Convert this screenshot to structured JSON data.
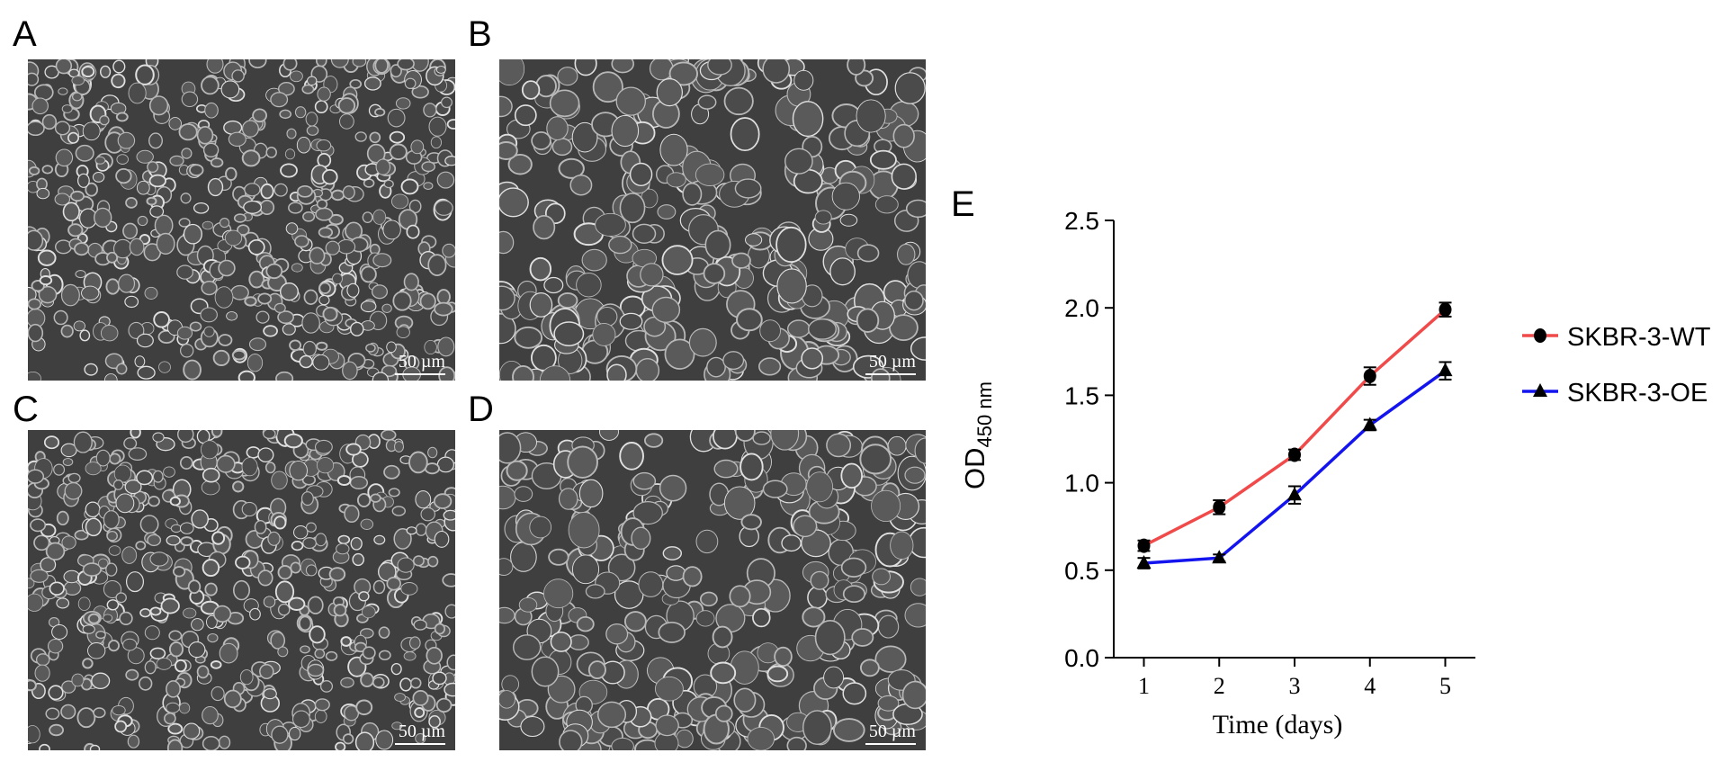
{
  "panels": [
    {
      "letter": "A",
      "scale_label": "50 µm"
    },
    {
      "letter": "B",
      "scale_label": "50 µm"
    },
    {
      "letter": "C",
      "scale_label": "50 µm"
    },
    {
      "letter": "D",
      "scale_label": "50 µm"
    }
  ],
  "chart_letter": "E",
  "chart_data": {
    "type": "line",
    "title": "",
    "xlabel": "Time (days)",
    "ylabel_main": "OD",
    "ylabel_sub": "450 nm",
    "x": [
      1,
      2,
      3,
      4,
      5
    ],
    "xticks": [
      "1",
      "2",
      "3",
      "4",
      "5"
    ],
    "yticks": [
      "0.0",
      "0.5",
      "1.0",
      "1.5",
      "2.0",
      "2.5"
    ],
    "ylim": [
      0,
      2.5
    ],
    "legend_position": "right",
    "series": [
      {
        "name": "SKBR-3-WT",
        "marker": "circle",
        "color": "#f04a4a",
        "values": [
          0.64,
          0.86,
          1.16,
          1.61,
          1.99
        ],
        "errors": [
          0.03,
          0.04,
          0.03,
          0.05,
          0.04
        ]
      },
      {
        "name": "SKBR-3-OE",
        "marker": "triangle",
        "color": "#1414ee",
        "values": [
          0.54,
          0.57,
          0.93,
          1.33,
          1.64
        ],
        "errors": [
          0.03,
          0.02,
          0.05,
          0.03,
          0.05
        ]
      }
    ]
  }
}
